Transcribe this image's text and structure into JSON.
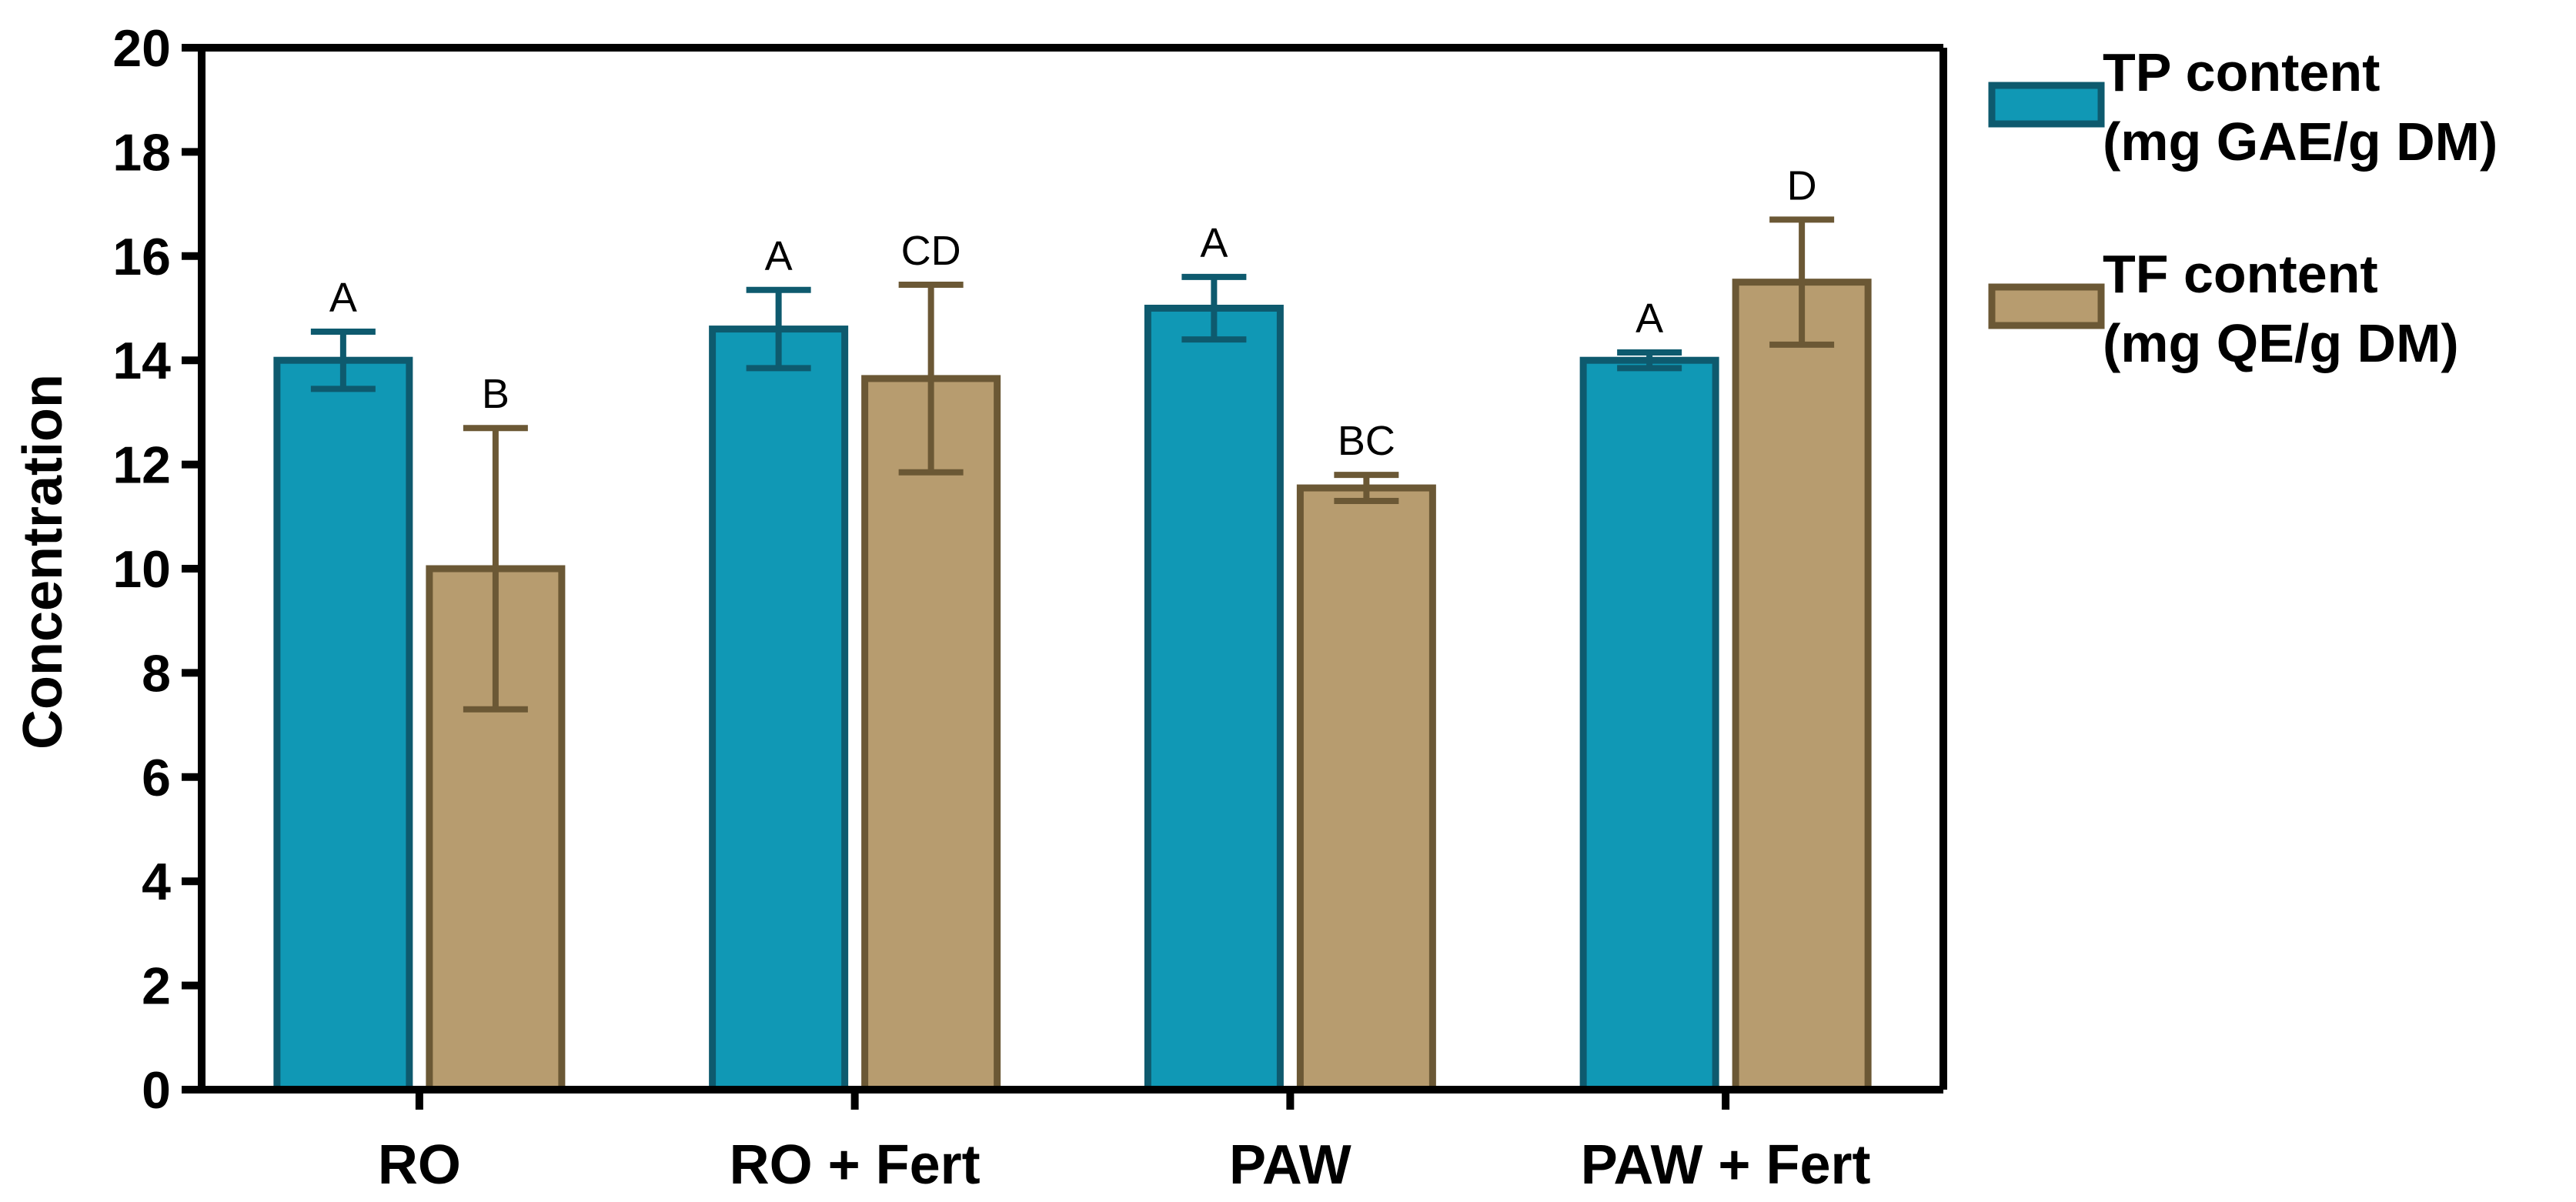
{
  "chart_data": {
    "type": "bar",
    "title": "",
    "xlabel": "",
    "ylabel": "Concentration",
    "ylim": [
      0,
      20
    ],
    "yticks": [
      "0",
      "2",
      "4",
      "6",
      "8",
      "10",
      "12",
      "14",
      "16",
      "18",
      "20"
    ],
    "categories": [
      "RO",
      "RO + Fert",
      "PAW",
      "PAW + Fert"
    ],
    "legend_position": "right",
    "series": [
      {
        "name_line1": "TP content",
        "name_line2": "(mg GAE/g DM)",
        "color": "#1098B5",
        "edge": "#0E5A6E",
        "values": [
          14.0,
          14.6,
          15.0,
          14.0
        ],
        "err": [
          0.55,
          0.75,
          0.6,
          0.15
        ],
        "letters": [
          "A",
          "A",
          "A",
          "A"
        ]
      },
      {
        "name_line1": "TF content",
        "name_line2": "(mg QE/g DM)",
        "color": "#B79C6F",
        "edge": "#6B5835",
        "values": [
          10.0,
          13.65,
          11.55,
          15.5
        ],
        "err": [
          2.7,
          1.8,
          0.25,
          1.2
        ],
        "letters": [
          "B",
          "CD",
          "BC",
          "D"
        ]
      }
    ]
  }
}
